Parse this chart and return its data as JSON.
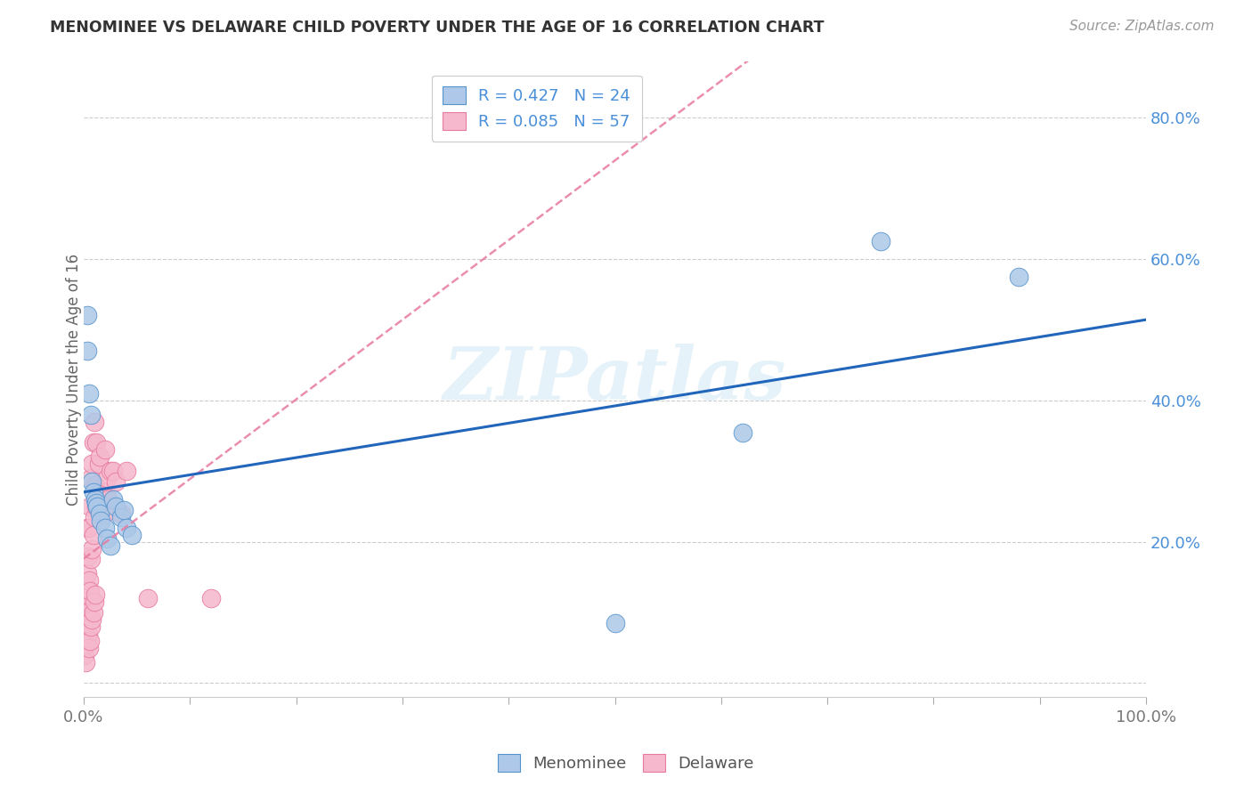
{
  "title": "MENOMINEE VS DELAWARE CHILD POVERTY UNDER THE AGE OF 16 CORRELATION CHART",
  "source": "Source: ZipAtlas.com",
  "ylabel": "Child Poverty Under the Age of 16",
  "xlim": [
    0,
    1
  ],
  "ylim": [
    -0.02,
    0.88
  ],
  "xtick_positions": [
    0.0,
    0.1,
    0.2,
    0.3,
    0.4,
    0.5,
    0.6,
    0.7,
    0.8,
    0.9,
    1.0
  ],
  "xtick_labels": [
    "0.0%",
    "",
    "",
    "",
    "",
    "",
    "",
    "",
    "",
    "",
    "100.0%"
  ],
  "ytick_positions": [
    0.0,
    0.2,
    0.4,
    0.6,
    0.8
  ],
  "ytick_labels_right": [
    "",
    "20.0%",
    "40.0%",
    "60.0%",
    "80.0%"
  ],
  "menominee_R": 0.427,
  "menominee_N": 24,
  "delaware_R": 0.085,
  "delaware_N": 57,
  "menominee_color": "#adc8e8",
  "delaware_color": "#f5b8cc",
  "menominee_edge_color": "#5594cc",
  "delaware_edge_color": "#e87aa0",
  "menominee_line_color": "#2266bb",
  "delaware_line_color": "#e87aa0",
  "menominee_x": [
    0.003,
    0.003,
    0.005,
    0.007,
    0.008,
    0.009,
    0.011,
    0.012,
    0.013,
    0.015,
    0.016,
    0.02,
    0.022,
    0.025,
    0.028,
    0.03,
    0.035,
    0.038,
    0.04,
    0.045,
    0.5,
    0.62,
    0.75,
    0.88
  ],
  "menominee_y": [
    0.52,
    0.47,
    0.41,
    0.38,
    0.285,
    0.27,
    0.26,
    0.255,
    0.25,
    0.24,
    0.23,
    0.22,
    0.205,
    0.195,
    0.26,
    0.25,
    0.235,
    0.245,
    0.22,
    0.21,
    0.085,
    0.355,
    0.625,
    0.575
  ],
  "delaware_x": [
    0.0,
    0.0,
    0.0,
    0.001,
    0.001,
    0.001,
    0.002,
    0.002,
    0.002,
    0.002,
    0.003,
    0.003,
    0.003,
    0.003,
    0.004,
    0.004,
    0.005,
    0.005,
    0.005,
    0.006,
    0.006,
    0.006,
    0.007,
    0.007,
    0.007,
    0.008,
    0.008,
    0.008,
    0.009,
    0.009,
    0.009,
    0.01,
    0.01,
    0.01,
    0.011,
    0.011,
    0.012,
    0.012,
    0.013,
    0.014,
    0.015,
    0.015,
    0.016,
    0.017,
    0.018,
    0.019,
    0.02,
    0.021,
    0.022,
    0.023,
    0.025,
    0.028,
    0.03,
    0.035,
    0.04,
    0.06,
    0.12
  ],
  "delaware_y": [
    0.05,
    0.08,
    0.11,
    0.04,
    0.07,
    0.1,
    0.03,
    0.055,
    0.09,
    0.14,
    0.06,
    0.1,
    0.155,
    0.22,
    0.07,
    0.18,
    0.05,
    0.145,
    0.22,
    0.06,
    0.13,
    0.25,
    0.08,
    0.175,
    0.29,
    0.09,
    0.19,
    0.31,
    0.1,
    0.21,
    0.34,
    0.115,
    0.235,
    0.37,
    0.125,
    0.28,
    0.25,
    0.34,
    0.255,
    0.31,
    0.265,
    0.32,
    0.27,
    0.26,
    0.255,
    0.24,
    0.33,
    0.27,
    0.29,
    0.26,
    0.3,
    0.3,
    0.285,
    0.24,
    0.3,
    0.12,
    0.12
  ],
  "watermark_text": "ZIPatlas",
  "background_color": "#ffffff",
  "grid_color": "#cccccc",
  "title_color": "#333333",
  "source_color": "#999999",
  "tick_label_color": "#4a90d9",
  "ylabel_color": "#666666",
  "legend_label_color": "#4a90d9",
  "bottom_legend_color": "#555555"
}
